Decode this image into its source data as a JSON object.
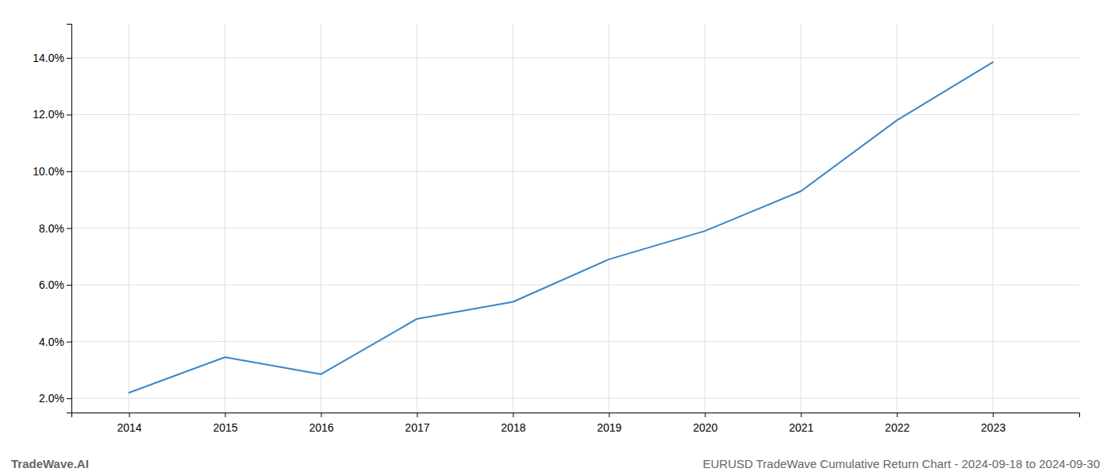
{
  "chart_data": {
    "type": "line",
    "x": [
      2014,
      2015,
      2016,
      2017,
      2018,
      2019,
      2020,
      2021,
      2022,
      2023
    ],
    "values": [
      2.2,
      3.45,
      2.85,
      4.8,
      5.4,
      6.9,
      7.9,
      9.3,
      11.8,
      13.85
    ],
    "color": "#3a87c8",
    "xlim": [
      2013.4,
      2023.9
    ],
    "xticks": [
      2014,
      2015,
      2016,
      2017,
      2018,
      2019,
      2020,
      2021,
      2022,
      2023
    ],
    "ylim": [
      1.5,
      15.2
    ],
    "yticks": [
      {
        "value": 2.0,
        "label": "2.0%"
      },
      {
        "value": 4.0,
        "label": "4.0%"
      },
      {
        "value": 6.0,
        "label": "6.0%"
      },
      {
        "value": 8.0,
        "label": "8.0%"
      },
      {
        "value": 10.0,
        "label": "10.0%"
      },
      {
        "value": 12.0,
        "label": "12.0%"
      },
      {
        "value": 14.0,
        "label": "14.0%"
      }
    ],
    "grid": true,
    "annotations": [
      "TradeWave.AI",
      "EURUSD TradeWave Cumulative Return Chart - 2024-09-18 to 2024-09-30"
    ]
  }
}
